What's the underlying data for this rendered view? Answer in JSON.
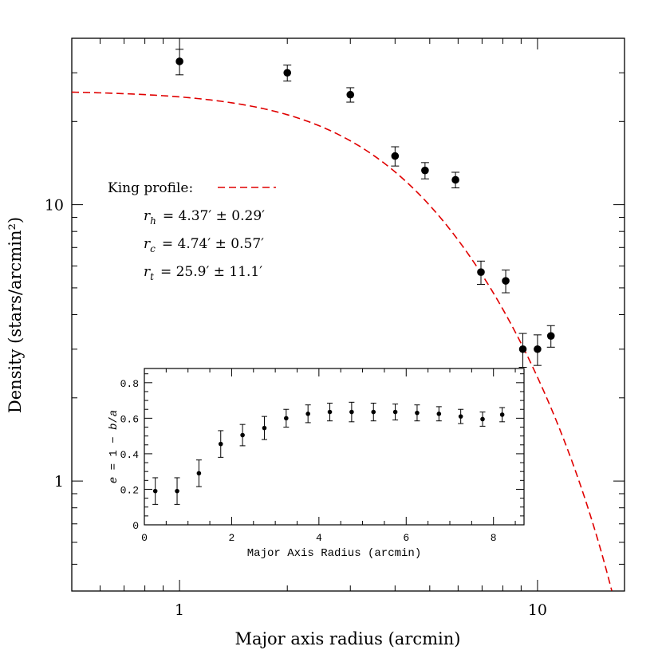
{
  "chart_data": [
    {
      "type": "scatter",
      "xlabel": "Major axis radius (arcmin)",
      "ylabel": "Density (stars/arcmin²)",
      "xscale": "log",
      "yscale": "log",
      "xlim": [
        0.5,
        17.5
      ],
      "ylim": [
        0.4,
        40
      ],
      "x_tick_labels": [
        "1",
        "10"
      ],
      "y_tick_labels": [
        "1",
        "10"
      ],
      "series": [
        {
          "points": [
            {
              "x": 1.0,
              "y": 33.0,
              "err": 3.5
            },
            {
              "x": 2.0,
              "y": 30.0,
              "err": 2.0
            },
            {
              "x": 3.0,
              "y": 25.0,
              "err": 1.5
            },
            {
              "x": 4.0,
              "y": 15.0,
              "err": 1.2
            },
            {
              "x": 4.85,
              "y": 13.3,
              "err": 0.9
            },
            {
              "x": 5.9,
              "y": 12.3,
              "err": 0.8
            },
            {
              "x": 6.95,
              "y": 5.7,
              "err": 0.55
            },
            {
              "x": 8.15,
              "y": 5.3,
              "err": 0.5
            },
            {
              "x": 9.1,
              "y": 3.0,
              "err": 0.42
            },
            {
              "x": 10.0,
              "y": 3.0,
              "err": 0.38
            },
            {
              "x": 10.9,
              "y": 3.35,
              "err": 0.3
            }
          ]
        }
      ],
      "fit": {
        "label": "King profile:",
        "color": "#e00000",
        "style": "dashed",
        "k": 38.5,
        "r_c": 4.74,
        "r_t": 25.9,
        "params": [
          {
            "sym": "r",
            "sub": "h",
            "text": "=  4.37′  ±  0.29′"
          },
          {
            "sym": "r",
            "sub": "c",
            "text": "=  4.74′  ±  0.57′"
          },
          {
            "sym": "r",
            "sub": "t",
            "text": "=  25.9′  ±  11.1′"
          }
        ]
      },
      "legend_position": "left"
    },
    {
      "type": "scatter",
      "xlabel": "Major Axis Radius (arcmin)",
      "ylabel_parts": [
        "e",
        " = 1 − ",
        "b",
        "/",
        "a"
      ],
      "xlim": [
        0,
        8.7
      ],
      "ylim": [
        0,
        0.88
      ],
      "x_tick_labels": [
        "0",
        "2",
        "4",
        "6",
        "8"
      ],
      "y_tick_labels": [
        "0",
        "0.2",
        "0.4",
        "0.6",
        "0.8"
      ],
      "series": [
        {
          "points": [
            {
              "x": 0.25,
              "y": 0.19,
              "err": 0.075
            },
            {
              "x": 0.75,
              "y": 0.19,
              "err": 0.075
            },
            {
              "x": 1.25,
              "y": 0.29,
              "err": 0.075
            },
            {
              "x": 1.75,
              "y": 0.455,
              "err": 0.075
            },
            {
              "x": 2.25,
              "y": 0.505,
              "err": 0.06
            },
            {
              "x": 2.75,
              "y": 0.545,
              "err": 0.065
            },
            {
              "x": 3.25,
              "y": 0.6,
              "err": 0.05
            },
            {
              "x": 3.75,
              "y": 0.625,
              "err": 0.05
            },
            {
              "x": 4.25,
              "y": 0.635,
              "err": 0.05
            },
            {
              "x": 4.75,
              "y": 0.635,
              "err": 0.055
            },
            {
              "x": 5.25,
              "y": 0.635,
              "err": 0.05
            },
            {
              "x": 5.75,
              "y": 0.635,
              "err": 0.045
            },
            {
              "x": 6.25,
              "y": 0.63,
              "err": 0.045
            },
            {
              "x": 6.75,
              "y": 0.625,
              "err": 0.04
            },
            {
              "x": 7.25,
              "y": 0.61,
              "err": 0.04
            },
            {
              "x": 7.75,
              "y": 0.595,
              "err": 0.04
            },
            {
              "x": 8.2,
              "y": 0.62,
              "err": 0.04
            }
          ]
        }
      ]
    }
  ]
}
